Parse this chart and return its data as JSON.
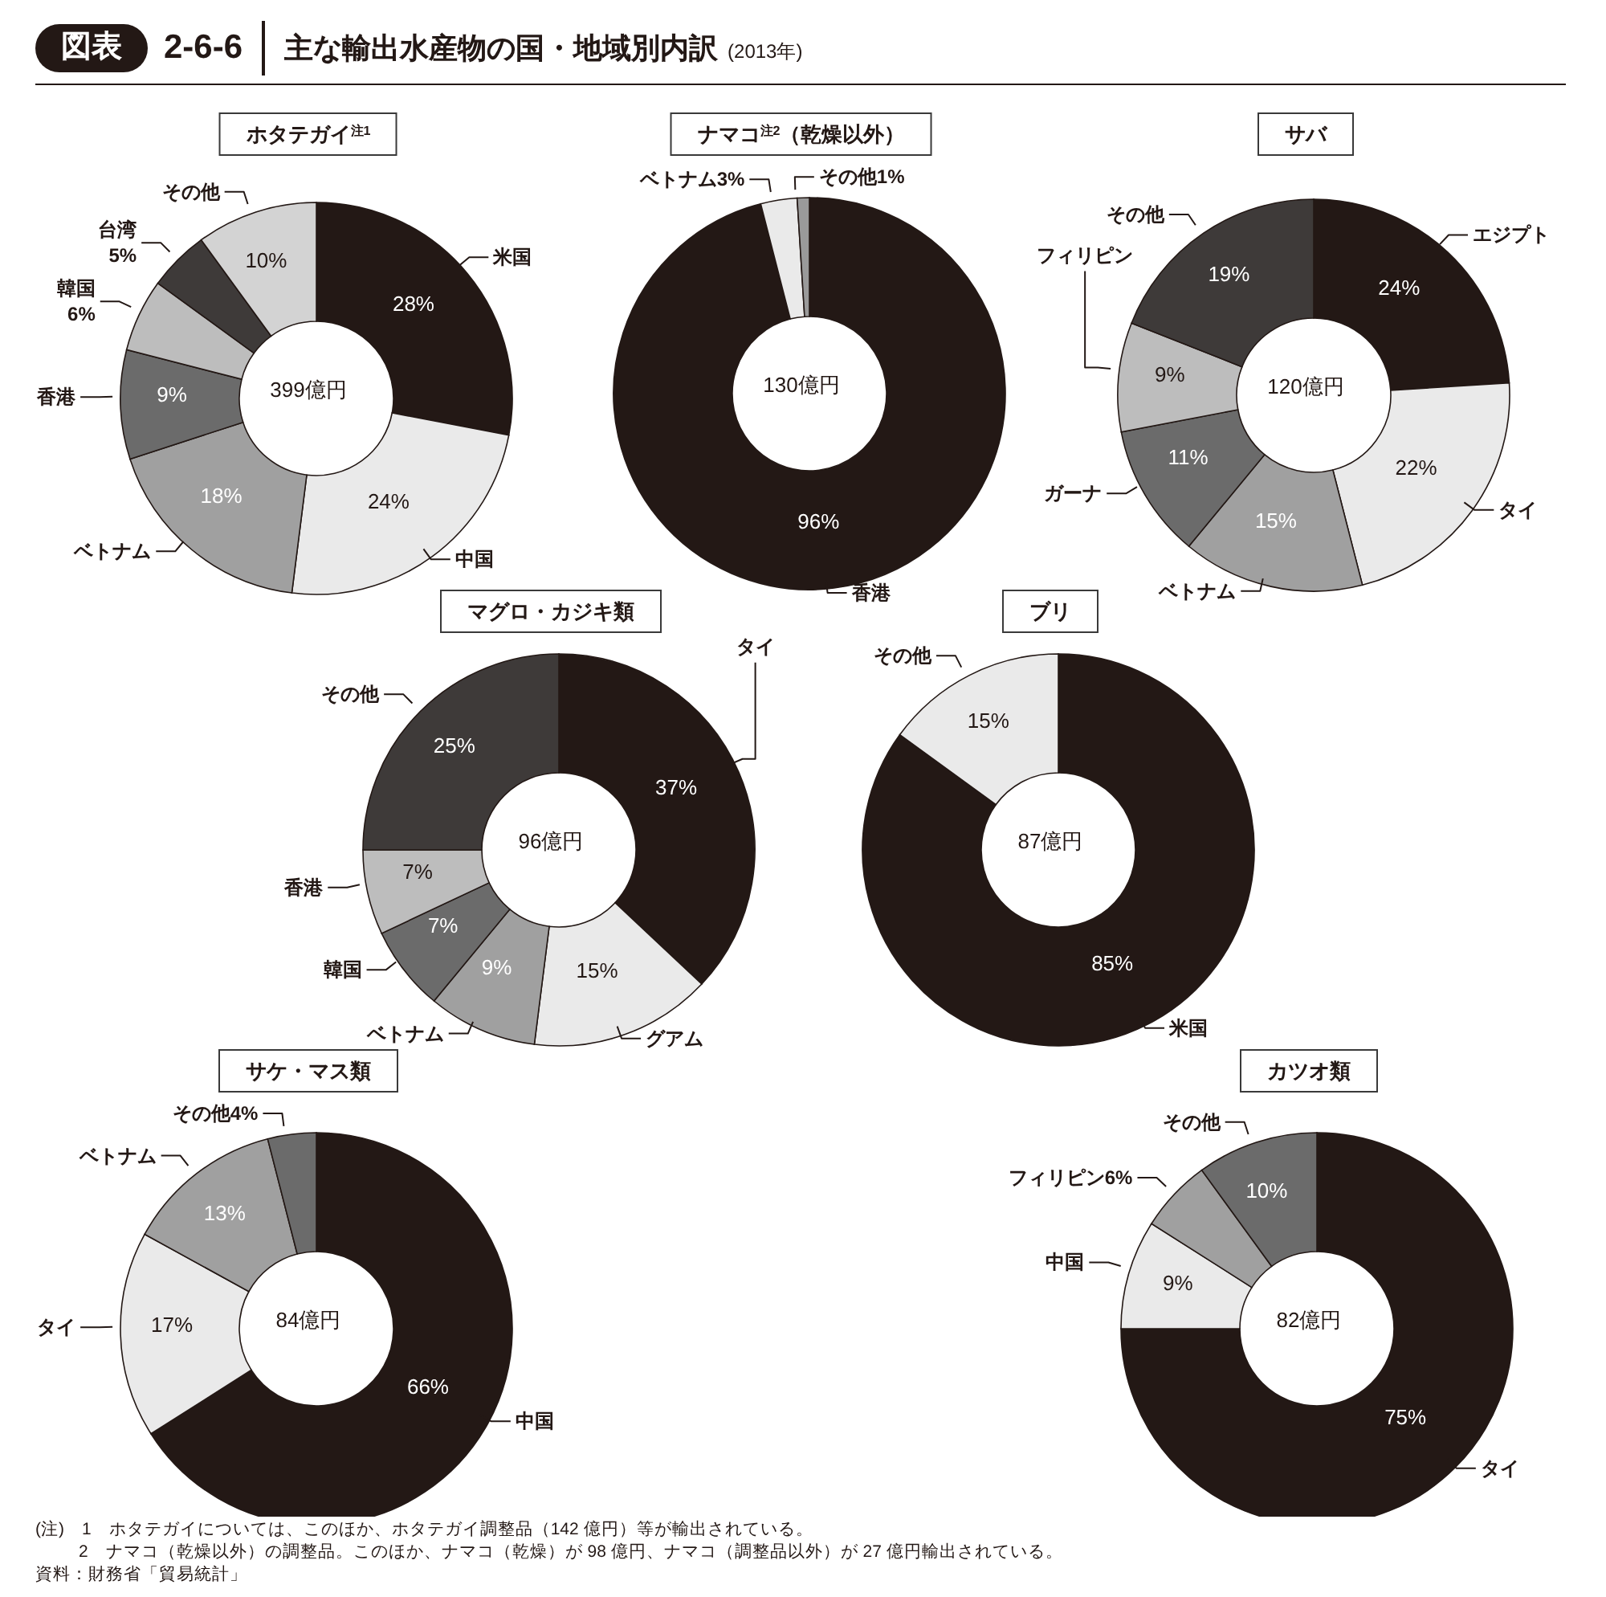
{
  "chart_data": [
    {
      "type": "other",
      "title": "主な輸出水産物の国・地域別内訳",
      "subtitle": "(2013年)",
      "annotations": [
        "図表",
        "2-6-6"
      ]
    },
    {
      "type": "donut",
      "title": "ホタテガイ$^{注1}$",
      "categories": [
        "米国",
        "中国",
        "ベトナム",
        "香港",
        "韓国",
        "台湾",
        "その他"
      ],
      "values": [
        28,
        24,
        18,
        9,
        6,
        5,
        10
      ],
      "colors": [
        "#231815",
        "#eaeaea",
        "#a0a0a0",
        "#6b6b6b",
        "#bdbdbd",
        "#3e3a39",
        "#d3d3d3"
      ],
      "value_labels": [
        "28%",
        "24%",
        "18%",
        "9%",
        "6%",
        "5%",
        "10%"
      ],
      "annotations": [
        "399億円"
      ]
    },
    {
      "type": "donut",
      "title": "ナマコ$^{注2}$（乾燥以外）",
      "categories": [
        "香港",
        "ベトナム",
        "その他"
      ],
      "values": [
        96,
        3,
        1
      ],
      "colors": [
        "#231815",
        "#eaeaea",
        "#9a9a9a"
      ],
      "value_labels": [
        "96%",
        "3%",
        "1%"
      ],
      "annotations": [
        "130億円"
      ]
    },
    {
      "type": "donut",
      "title": "サバ",
      "categories": [
        "エジプト",
        "タイ",
        "ベトナム",
        "ガーナ",
        "フィリピン",
        "その他"
      ],
      "values": [
        24,
        22,
        15,
        11,
        9,
        19
      ],
      "colors": [
        "#231815",
        "#eaeaea",
        "#a0a0a0",
        "#6b6b6b",
        "#bdbdbd",
        "#3e3a39"
      ],
      "value_labels": [
        "24%",
        "22%",
        "15%",
        "11%",
        "9%",
        "19%"
      ],
      "annotations": [
        "120億円"
      ]
    },
    {
      "type": "donut",
      "title": "マグロ・カジキ類",
      "categories": [
        "タイ",
        "グアム",
        "ベトナム",
        "韓国",
        "香港",
        "その他"
      ],
      "values": [
        37,
        15,
        9,
        7,
        7,
        25
      ],
      "colors": [
        "#231815",
        "#eaeaea",
        "#a0a0a0",
        "#6b6b6b",
        "#bdbdbd",
        "#3e3a39"
      ],
      "value_labels": [
        "37%",
        "15%",
        "9%",
        "7%",
        "7%",
        "25%"
      ],
      "annotations": [
        "96億円"
      ]
    },
    {
      "type": "donut",
      "title": "ブリ",
      "categories": [
        "米国",
        "その他"
      ],
      "values": [
        85,
        15
      ],
      "colors": [
        "#231815",
        "#eaeaea"
      ],
      "value_labels": [
        "85%",
        "15%"
      ],
      "annotations": [
        "87億円"
      ]
    },
    {
      "type": "donut",
      "title": "サケ・マス類",
      "categories": [
        "中国",
        "タイ",
        "ベトナム",
        "その他"
      ],
      "values": [
        66,
        17,
        13,
        4
      ],
      "colors": [
        "#231815",
        "#eaeaea",
        "#a0a0a0",
        "#6b6b6b"
      ],
      "value_labels": [
        "66%",
        "17%",
        "13%",
        "4%"
      ],
      "annotations": [
        "84億円"
      ]
    },
    {
      "type": "donut",
      "title": "カツオ類",
      "categories": [
        "タイ",
        "中国",
        "フィリピン",
        "その他"
      ],
      "values": [
        75,
        9,
        6,
        10
      ],
      "colors": [
        "#231815",
        "#eaeaea",
        "#a0a0a0",
        "#6b6b6b"
      ],
      "value_labels": [
        "75%",
        "9%",
        "6%",
        "10%"
      ],
      "annotations": [
        "82億円"
      ]
    },
    {
      "type": "other",
      "annotations": [
        "(注)　1　ホタテガイについては、このほか、ホタテガイ調整品（142 億円）等が輸出されている。",
        "2　ナマコ（乾燥以外）の調整品。このほか、ナマコ（乾燥）が 98 億円、ナマコ（調整品以外）が 27 億円輸出されている。",
        "資料：財務省「貿易統計」"
      ]
    }
  ]
}
